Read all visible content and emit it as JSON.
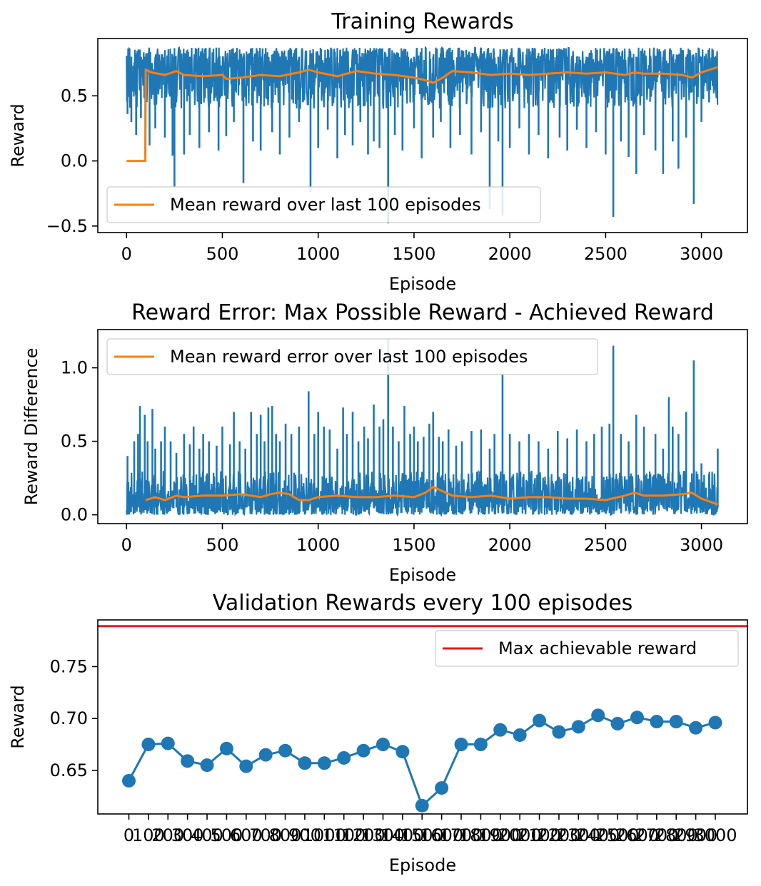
{
  "chart_data": [
    {
      "type": "line",
      "title": "Training Rewards",
      "xlabel": "Episode",
      "ylabel": "Reward",
      "xlim": [
        -150,
        3240
      ],
      "ylim": [
        -0.55,
        0.94
      ],
      "x_ticks": [
        0,
        500,
        1000,
        1500,
        2000,
        2500,
        3000
      ],
      "x_tick_labels": [
        "0",
        "500",
        "1000",
        "1500",
        "2000",
        "2500",
        "3000"
      ],
      "y_ticks": [
        -0.5,
        0.0,
        0.5
      ],
      "y_tick_labels": [
        "−0.5",
        "0.0",
        "0.5"
      ],
      "legend": {
        "position": "lower-left",
        "entries": [
          "Mean reward over last 100 episodes"
        ]
      },
      "grid": false,
      "series": [
        {
          "role": "raw",
          "color": "#1f77b4",
          "episodes": [
            0,
            3085
          ],
          "typical_range": [
            0.4,
            0.87
          ],
          "dips": [
            [
              5,
              0.36
            ],
            [
              25,
              0.3
            ],
            [
              50,
              0.2
            ],
            [
              75,
              0.33
            ],
            [
              98,
              0.03
            ],
            [
              120,
              0.12
            ],
            [
              150,
              0.25
            ],
            [
              200,
              0.18
            ],
            [
              240,
              0.04
            ],
            [
              250,
              -0.2
            ],
            [
              300,
              0.05
            ],
            [
              330,
              0.2
            ],
            [
              380,
              0.1
            ],
            [
              430,
              0.22
            ],
            [
              480,
              0.08
            ],
            [
              520,
              0.19
            ],
            [
              560,
              0.3
            ],
            [
              610,
              -0.17
            ],
            [
              660,
              0.15
            ],
            [
              700,
              0.08
            ],
            [
              760,
              0.22
            ],
            [
              800,
              0.05
            ],
            [
              850,
              0.18
            ],
            [
              900,
              0.3
            ],
            [
              960,
              -0.24
            ],
            [
              1000,
              0.1
            ],
            [
              1050,
              0.24
            ],
            [
              1100,
              0.02
            ],
            [
              1140,
              0.2
            ],
            [
              1180,
              0.12
            ],
            [
              1220,
              0.3
            ],
            [
              1260,
              0.05
            ],
            [
              1290,
              0.15
            ],
            [
              1320,
              0.1
            ],
            [
              1365,
              -0.48
            ],
            [
              1400,
              0.2
            ],
            [
              1440,
              0.08
            ],
            [
              1500,
              0.25
            ],
            [
              1540,
              0.02
            ],
            [
              1600,
              0.18
            ],
            [
              1640,
              0.3
            ],
            [
              1690,
              0.1
            ],
            [
              1740,
              0.2
            ],
            [
              1800,
              0.05
            ],
            [
              1850,
              0.22
            ],
            [
              1895,
              -0.37
            ],
            [
              1940,
              0.15
            ],
            [
              1962,
              -0.42
            ],
            [
              2000,
              0.1
            ],
            [
              2050,
              0.25
            ],
            [
              2100,
              0.05
            ],
            [
              2150,
              0.2
            ],
            [
              2200,
              0.02
            ],
            [
              2260,
              0.18
            ],
            [
              2300,
              0.08
            ],
            [
              2350,
              0.24
            ],
            [
              2400,
              0.1
            ],
            [
              2450,
              0.22
            ],
            [
              2500,
              0.05
            ],
            [
              2540,
              -0.43
            ],
            [
              2580,
              0.15
            ],
            [
              2620,
              0.03
            ],
            [
              2660,
              -0.1
            ],
            [
              2700,
              0.2
            ],
            [
              2760,
              0.08
            ],
            [
              2800,
              -0.1
            ],
            [
              2850,
              0.15
            ],
            [
              2880,
              -0.06
            ],
            [
              2920,
              0.18
            ],
            [
              2960,
              -0.33
            ],
            [
              3000,
              0.3
            ],
            [
              3040,
              0.45
            ],
            [
              3070,
              0.55
            ]
          ]
        },
        {
          "role": "mean",
          "name": "Mean reward over last 100 episodes",
          "color": "#ff7f0e",
          "x": [
            0,
            98,
            100,
            130,
            200,
            260,
            300,
            400,
            500,
            520,
            600,
            700,
            800,
            900,
            950,
            1000,
            1100,
            1200,
            1300,
            1400,
            1500,
            1560,
            1600,
            1650,
            1700,
            1800,
            1900,
            2000,
            2100,
            2200,
            2300,
            2400,
            2500,
            2600,
            2650,
            2700,
            2800,
            2900,
            2950,
            3000,
            3085
          ],
          "y": [
            0.0,
            0.0,
            0.7,
            0.68,
            0.66,
            0.69,
            0.66,
            0.65,
            0.66,
            0.63,
            0.64,
            0.66,
            0.65,
            0.68,
            0.7,
            0.68,
            0.65,
            0.69,
            0.67,
            0.66,
            0.64,
            0.62,
            0.6,
            0.64,
            0.69,
            0.68,
            0.66,
            0.67,
            0.66,
            0.67,
            0.68,
            0.67,
            0.68,
            0.66,
            0.68,
            0.67,
            0.67,
            0.66,
            0.64,
            0.68,
            0.72
          ]
        }
      ]
    },
    {
      "type": "line",
      "title": "Reward Error: Max Possible Reward - Achieved Reward",
      "xlabel": "Episode",
      "ylabel": "Reward Difference",
      "xlim": [
        -150,
        3240
      ],
      "ylim": [
        -0.06,
        1.26
      ],
      "x_ticks": [
        0,
        500,
        1000,
        1500,
        2000,
        2500,
        3000
      ],
      "x_tick_labels": [
        "0",
        "500",
        "1000",
        "1500",
        "2000",
        "2500",
        "3000"
      ],
      "y_ticks": [
        0.0,
        0.5,
        1.0
      ],
      "y_tick_labels": [
        "0.0",
        "0.5",
        "1.0"
      ],
      "legend": {
        "position": "upper-left",
        "entries": [
          "Mean reward error over last 100 episodes"
        ]
      },
      "grid": false,
      "series": [
        {
          "role": "raw",
          "color": "#1f77b4",
          "episodes": [
            0,
            3085
          ],
          "typical_range": [
            0.0,
            0.3
          ],
          "spikes": [
            [
              5,
              0.4
            ],
            [
              40,
              0.5
            ],
            [
              60,
              0.55
            ],
            [
              70,
              0.74
            ],
            [
              95,
              0.68
            ],
            [
              110,
              0.5
            ],
            [
              135,
              0.72
            ],
            [
              150,
              0.45
            ],
            [
              180,
              0.5
            ],
            [
              200,
              0.6
            ],
            [
              230,
              0.5
            ],
            [
              260,
              0.42
            ],
            [
              300,
              0.55
            ],
            [
              330,
              0.48
            ],
            [
              350,
              0.6
            ],
            [
              380,
              0.45
            ],
            [
              400,
              0.55
            ],
            [
              430,
              0.5
            ],
            [
              470,
              0.47
            ],
            [
              500,
              0.6
            ],
            [
              540,
              0.48
            ],
            [
              560,
              0.7
            ],
            [
              590,
              0.5
            ],
            [
              620,
              0.45
            ],
            [
              650,
              0.7
            ],
            [
              680,
              0.55
            ],
            [
              700,
              0.68
            ],
            [
              720,
              0.5
            ],
            [
              740,
              0.73
            ],
            [
              760,
              0.74
            ],
            [
              780,
              0.55
            ],
            [
              800,
              0.5
            ],
            [
              830,
              0.62
            ],
            [
              860,
              0.55
            ],
            [
              900,
              0.6
            ],
            [
              950,
              0.84
            ],
            [
              980,
              0.55
            ],
            [
              1000,
              0.7
            ],
            [
              1030,
              0.6
            ],
            [
              1060,
              0.58
            ],
            [
              1100,
              0.45
            ],
            [
              1130,
              0.73
            ],
            [
              1150,
              0.55
            ],
            [
              1180,
              0.7
            ],
            [
              1210,
              0.5
            ],
            [
              1240,
              0.6
            ],
            [
              1260,
              0.52
            ],
            [
              1290,
              0.75
            ],
            [
              1320,
              0.6
            ],
            [
              1340,
              0.65
            ],
            [
              1365,
              1.2
            ],
            [
              1390,
              0.6
            ],
            [
              1420,
              0.5
            ],
            [
              1450,
              0.74
            ],
            [
              1480,
              0.55
            ],
            [
              1500,
              0.6
            ],
            [
              1520,
              0.5
            ],
            [
              1550,
              0.53
            ],
            [
              1580,
              0.62
            ],
            [
              1600,
              0.7
            ],
            [
              1630,
              0.53
            ],
            [
              1650,
              0.5
            ],
            [
              1680,
              0.58
            ],
            [
              1720,
              0.47
            ],
            [
              1750,
              0.5
            ],
            [
              1800,
              0.57
            ],
            [
              1850,
              0.58
            ],
            [
              1895,
              0.45
            ],
            [
              1920,
              0.55
            ],
            [
              1962,
              0.96
            ],
            [
              2000,
              0.55
            ],
            [
              2050,
              0.5
            ],
            [
              2100,
              0.55
            ],
            [
              2150,
              0.5
            ],
            [
              2200,
              0.45
            ],
            [
              2250,
              0.57
            ],
            [
              2300,
              0.52
            ],
            [
              2350,
              0.58
            ],
            [
              2400,
              0.5
            ],
            [
              2440,
              0.55
            ],
            [
              2480,
              0.6
            ],
            [
              2520,
              0.62
            ],
            [
              2540,
              1.15
            ],
            [
              2580,
              0.55
            ],
            [
              2620,
              0.5
            ],
            [
              2660,
              0.68
            ],
            [
              2700,
              0.6
            ],
            [
              2760,
              0.55
            ],
            [
              2800,
              0.45
            ],
            [
              2830,
              0.8
            ],
            [
              2850,
              0.6
            ],
            [
              2880,
              0.55
            ],
            [
              2920,
              0.7
            ],
            [
              2960,
              1.05
            ],
            [
              3000,
              0.35
            ],
            [
              3040,
              0.28
            ],
            [
              3085,
              0.45
            ]
          ]
        },
        {
          "role": "mean",
          "name": "Mean reward error over last 100 episodes",
          "color": "#ff7f0e",
          "x": [
            100,
            150,
            200,
            260,
            300,
            400,
            500,
            600,
            700,
            750,
            800,
            850,
            900,
            950,
            1000,
            1100,
            1200,
            1300,
            1400,
            1500,
            1560,
            1600,
            1650,
            1700,
            1800,
            1900,
            2000,
            2100,
            2200,
            2300,
            2400,
            2500,
            2600,
            2650,
            2700,
            2800,
            2900,
            2950,
            3000,
            3085
          ],
          "y": [
            0.1,
            0.12,
            0.1,
            0.13,
            0.12,
            0.13,
            0.13,
            0.14,
            0.12,
            0.14,
            0.15,
            0.14,
            0.1,
            0.1,
            0.12,
            0.13,
            0.12,
            0.12,
            0.13,
            0.12,
            0.15,
            0.19,
            0.16,
            0.13,
            0.12,
            0.13,
            0.11,
            0.12,
            0.12,
            0.11,
            0.11,
            0.1,
            0.13,
            0.15,
            0.13,
            0.13,
            0.14,
            0.15,
            0.11,
            0.07
          ]
        }
      ]
    },
    {
      "type": "line",
      "title": "Validation Rewards every 100 episodes",
      "xlabel": "Episode",
      "ylabel": "Reward",
      "ylim": [
        0.608,
        0.795
      ],
      "y_ticks": [
        0.65,
        0.7,
        0.75
      ],
      "y_tick_labels": [
        "0.65",
        "0.70",
        "0.75"
      ],
      "categories": [
        "0",
        "100",
        "200",
        "300",
        "400",
        "500",
        "600",
        "700",
        "800",
        "900",
        "1000",
        "1100",
        "1200",
        "1300",
        "1400",
        "1500",
        "1600",
        "1700",
        "1800",
        "1900",
        "2000",
        "2100",
        "2200",
        "2300",
        "2400",
        "2500",
        "2600",
        "2700",
        "2800",
        "2900",
        "3000"
      ],
      "legend": {
        "position": "upper-right",
        "entries": [
          "Max achievable reward"
        ]
      },
      "grid": false,
      "series": [
        {
          "name": "",
          "color": "#1f77b4",
          "marker": "circle",
          "values": [
            0.64,
            0.675,
            0.676,
            0.659,
            0.655,
            0.671,
            0.654,
            0.665,
            0.669,
            0.657,
            0.657,
            0.662,
            0.669,
            0.675,
            0.668,
            0.616,
            0.633,
            0.675,
            0.675,
            0.689,
            0.684,
            0.698,
            0.687,
            0.692,
            0.703,
            0.695,
            0.701,
            0.697,
            0.697,
            0.691,
            0.696
          ]
        }
      ],
      "hline": {
        "name": "Max achievable reward",
        "value": 0.789,
        "color": "#e41a1c"
      }
    }
  ]
}
